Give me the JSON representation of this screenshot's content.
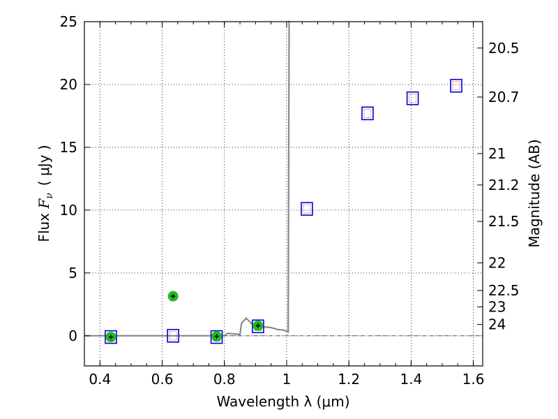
{
  "chart_data": {
    "type": "scatter",
    "title": "",
    "xlabel": "Wavelength  λ (μm)",
    "ylabel_left": {
      "prefix": "Flux ",
      "symbol": "F",
      "subscript": "ν",
      "unit": "( μJy )"
    },
    "ylabel_right": "Magnitude (AB)",
    "xlim": [
      0.35,
      1.63
    ],
    "ylim": [
      -2.4,
      25
    ],
    "x_ticks": [
      0.4,
      0.6,
      0.8,
      1.0,
      1.2,
      1.4,
      1.6
    ],
    "x_tick_labels": [
      "0.4",
      "0.6",
      "0.8",
      "1",
      "1.2",
      "1.4",
      "1.6"
    ],
    "y_ticks": [
      0,
      5,
      10,
      15,
      20,
      25
    ],
    "y_tick_labels": [
      "0",
      "5",
      "10",
      "15",
      "20",
      "25"
    ],
    "right_ticks": [
      {
        "label": "20.5",
        "flux": 22.9
      },
      {
        "label": "20.7",
        "flux": 19.0
      },
      {
        "label": "21",
        "flux": 14.5
      },
      {
        "label": "21.2",
        "flux": 12.0
      },
      {
        "label": "21.5",
        "flux": 9.1
      },
      {
        "label": "22",
        "flux": 5.8
      },
      {
        "label": "22.5",
        "flux": 3.6
      },
      {
        "label": "23",
        "flux": 2.3
      },
      {
        "label": "24",
        "flux": 0.9
      }
    ],
    "grid": true,
    "colors": {
      "observed": "#22bb22",
      "model_box": "#0000dd",
      "model_point": "#dd3333",
      "sed": "#888888",
      "zero_line": "#444444"
    },
    "series": [
      {
        "kind": "observed",
        "points": [
          {
            "x": 0.435,
            "y": -0.1,
            "err": 0.2
          },
          {
            "x": 0.635,
            "y": 3.15,
            "err": 0.2
          },
          {
            "x": 0.775,
            "y": -0.05,
            "err": 0.2
          },
          {
            "x": 0.908,
            "y": 0.8,
            "err": 0.2
          }
        ]
      },
      {
        "kind": "model",
        "points": [
          {
            "x": 0.435,
            "y": -0.1
          },
          {
            "x": 0.635,
            "y": 0.0
          },
          {
            "x": 0.775,
            "y": -0.1
          },
          {
            "x": 0.908,
            "y": 0.75
          },
          {
            "x": 1.065,
            "y": 10.1
          },
          {
            "x": 1.26,
            "y": 17.7
          },
          {
            "x": 1.405,
            "y": 18.9
          },
          {
            "x": 1.545,
            "y": 19.9
          }
        ]
      },
      {
        "kind": "sed",
        "points": [
          [
            0.35,
            0.0
          ],
          [
            0.8,
            0.0
          ],
          [
            0.81,
            0.2
          ],
          [
            0.83,
            0.15
          ],
          [
            0.85,
            0.1
          ],
          [
            0.855,
            1.0
          ],
          [
            0.87,
            1.4
          ],
          [
            0.89,
            0.9
          ],
          [
            0.91,
            0.8
          ],
          [
            0.93,
            0.7
          ],
          [
            0.95,
            0.65
          ],
          [
            0.97,
            0.5
          ],
          [
            0.99,
            0.45
          ],
          [
            1.005,
            0.3
          ],
          [
            1.008,
            25.0
          ]
        ]
      }
    ]
  }
}
